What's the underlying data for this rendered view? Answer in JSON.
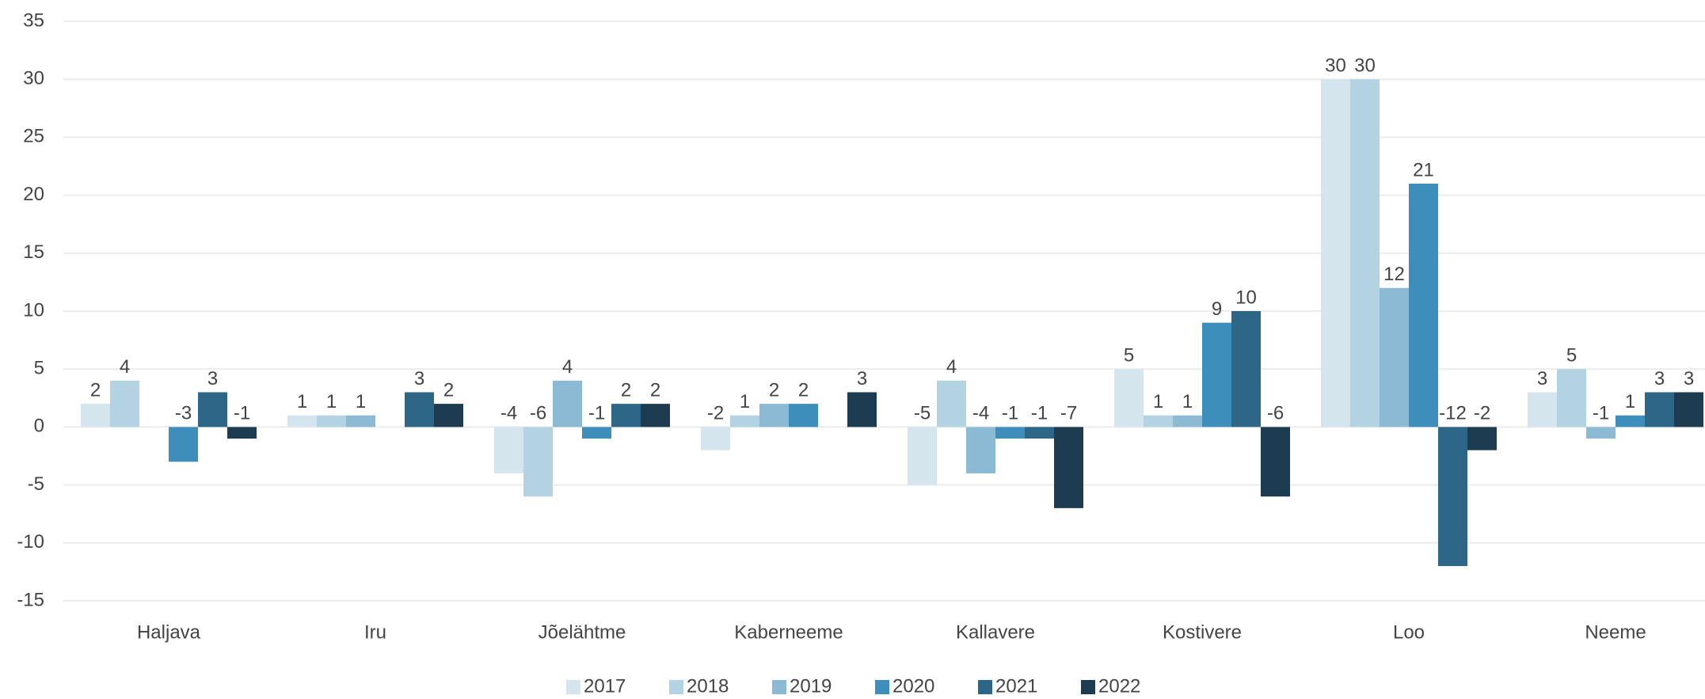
{
  "chart_data": {
    "type": "bar",
    "categories": [
      "Haljava",
      "Iru",
      "Jõelähtme",
      "Kaberneeme",
      "Kallavere",
      "Kostivere",
      "Loo",
      "Neeme"
    ],
    "series": [
      {
        "name": "2017",
        "color": "#d5e5ee",
        "values": [
          2,
          1,
          -4,
          -2,
          -5,
          5,
          30,
          3
        ]
      },
      {
        "name": "2018",
        "color": "#b3d2e2",
        "values": [
          4,
          1,
          -6,
          1,
          4,
          1,
          30,
          5
        ]
      },
      {
        "name": "2019",
        "color": "#8cbad4",
        "values": [
          null,
          1,
          4,
          2,
          -4,
          1,
          12,
          -1
        ]
      },
      {
        "name": "2020",
        "color": "#3e8ebc",
        "values": [
          -3,
          null,
          -1,
          2,
          -1,
          9,
          21,
          1
        ]
      },
      {
        "name": "2021",
        "color": "#2d6686",
        "values": [
          3,
          3,
          2,
          null,
          -1,
          10,
          -12,
          3
        ]
      },
      {
        "name": "2022",
        "color": "#1d3b51",
        "values": [
          -1,
          2,
          2,
          3,
          -7,
          -6,
          -2,
          3
        ]
      }
    ],
    "ylim": [
      -15,
      35
    ],
    "yticks": [
      -15,
      -10,
      -5,
      0,
      5,
      10,
      15,
      20,
      25,
      30,
      35
    ],
    "grid": true,
    "legend": "bottom"
  }
}
